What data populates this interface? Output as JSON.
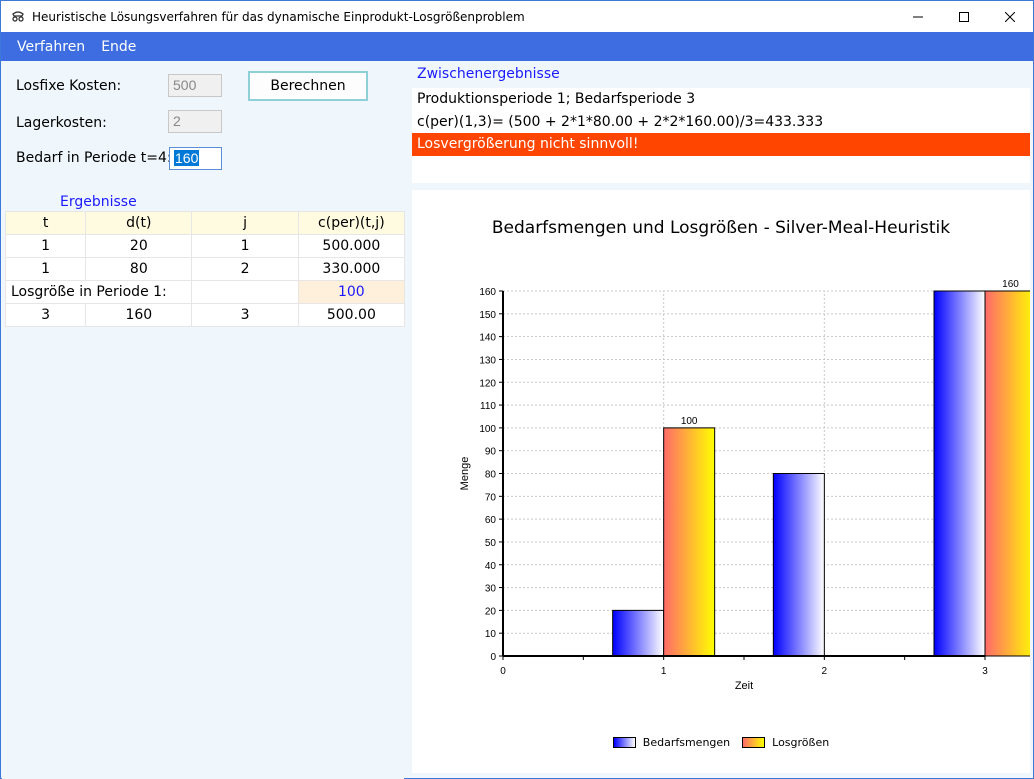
{
  "window": {
    "title": "Heuristische Lösungsverfahren für das dynamische Einprodukt-Losgrößenproblem",
    "minimize": "—",
    "maximize": "☐",
    "close": "✕"
  },
  "menu": {
    "items": [
      "Verfahren",
      "Ende"
    ]
  },
  "form": {
    "losfixe_label": "Losfixe Kosten:",
    "losfixe_value": "500",
    "lager_label": "Lagerkosten:",
    "lager_value": "2",
    "bedarf_label": "Bedarf in Periode t=4:",
    "bedarf_value": "160",
    "berechnen": "Berechnen"
  },
  "results": {
    "title": "Ergebnisse",
    "headers": [
      "t",
      "d(t)",
      "j",
      "c(per)(t,j)"
    ],
    "rows": [
      [
        "1",
        "20",
        "1",
        "500.000"
      ],
      [
        "1",
        "80",
        "2",
        "330.000"
      ]
    ],
    "los_label": "Losgröße in Periode 1:",
    "los_value": "100",
    "row_last": [
      "3",
      "160",
      "3",
      "500.00"
    ]
  },
  "zwischen": {
    "title": "Zwischenergebnisse",
    "line1": "Produktionsperiode 1; Bedarfsperiode 3",
    "line2": "c(per)(1,3)= (500 + 2*1*80.00 + 2*2*160.00)/3=433.333",
    "alert": "Losvergrößerung nicht sinnvoll!",
    "alert_color": "#ff4500"
  },
  "chart_data": {
    "type": "bar",
    "title": "Bedarfsmengen und Losgrößen - Silver-Meal-Heuristik",
    "xlabel": "Zeit",
    "ylabel": "Menge",
    "xlim": [
      0,
      3
    ],
    "ylim": [
      0,
      160
    ],
    "y_ticks": [
      0,
      10,
      20,
      30,
      40,
      50,
      60,
      70,
      80,
      90,
      100,
      110,
      120,
      130,
      140,
      150,
      160
    ],
    "x_ticks": [
      "0",
      "1",
      "2",
      "3"
    ],
    "categories": [
      "1",
      "2",
      "3"
    ],
    "series": [
      {
        "name": "Bedarfsmengen",
        "values": [
          20,
          80,
          160
        ],
        "data_labels": [
          "",
          "",
          ""
        ],
        "color_from": "#0000ff",
        "color_to": "#ffffff"
      },
      {
        "name": "Losgrößen",
        "values": [
          100,
          0,
          160
        ],
        "data_labels": [
          "100",
          "",
          "160"
        ],
        "color_from": "#ff6a6a",
        "color_to": "#ffff00"
      }
    ],
    "grid": true,
    "legend_position": "bottom"
  }
}
